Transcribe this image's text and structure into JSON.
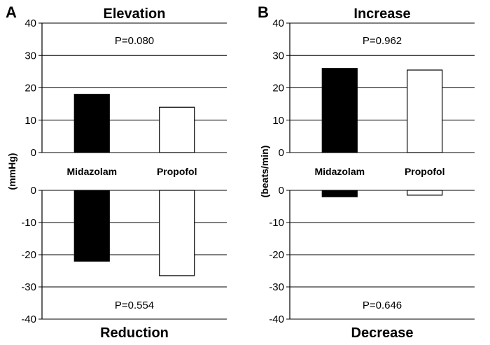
{
  "chart_data": [
    {
      "type": "bar",
      "panel_letter": "A",
      "ylabel": "(mmHg)",
      "categories": [
        "Midazolam",
        "Propofol"
      ],
      "series_colors": [
        "#000000",
        "#ffffff"
      ],
      "upper": {
        "title": "Elevation",
        "ylim": [
          0,
          40
        ],
        "ticks": [
          "0",
          "10",
          "20",
          "30",
          "40"
        ],
        "values": [
          18,
          14
        ],
        "annotation": "P=0.080"
      },
      "lower": {
        "title": "Reduction",
        "ylim": [
          -40,
          0
        ],
        "ticks": [
          "0",
          "-10",
          "-20",
          "-30",
          "-40"
        ],
        "values": [
          -22,
          -26.5
        ],
        "annotation": "P=0.554"
      }
    },
    {
      "type": "bar",
      "panel_letter": "B",
      "ylabel": "(beats/min)",
      "categories": [
        "Midazolam",
        "Propofol"
      ],
      "series_colors": [
        "#000000",
        "#ffffff"
      ],
      "upper": {
        "title": "Increase",
        "ylim": [
          0,
          40
        ],
        "ticks": [
          "0",
          "10",
          "20",
          "30",
          "40"
        ],
        "values": [
          26,
          25.5
        ],
        "annotation": "P=0.962"
      },
      "lower": {
        "title": "Decrease",
        "ylim": [
          -40,
          0
        ],
        "ticks": [
          "0",
          "-10",
          "-20",
          "-30",
          "-40"
        ],
        "values": [
          -2,
          -1.5
        ],
        "annotation": "P=0.646"
      }
    }
  ]
}
